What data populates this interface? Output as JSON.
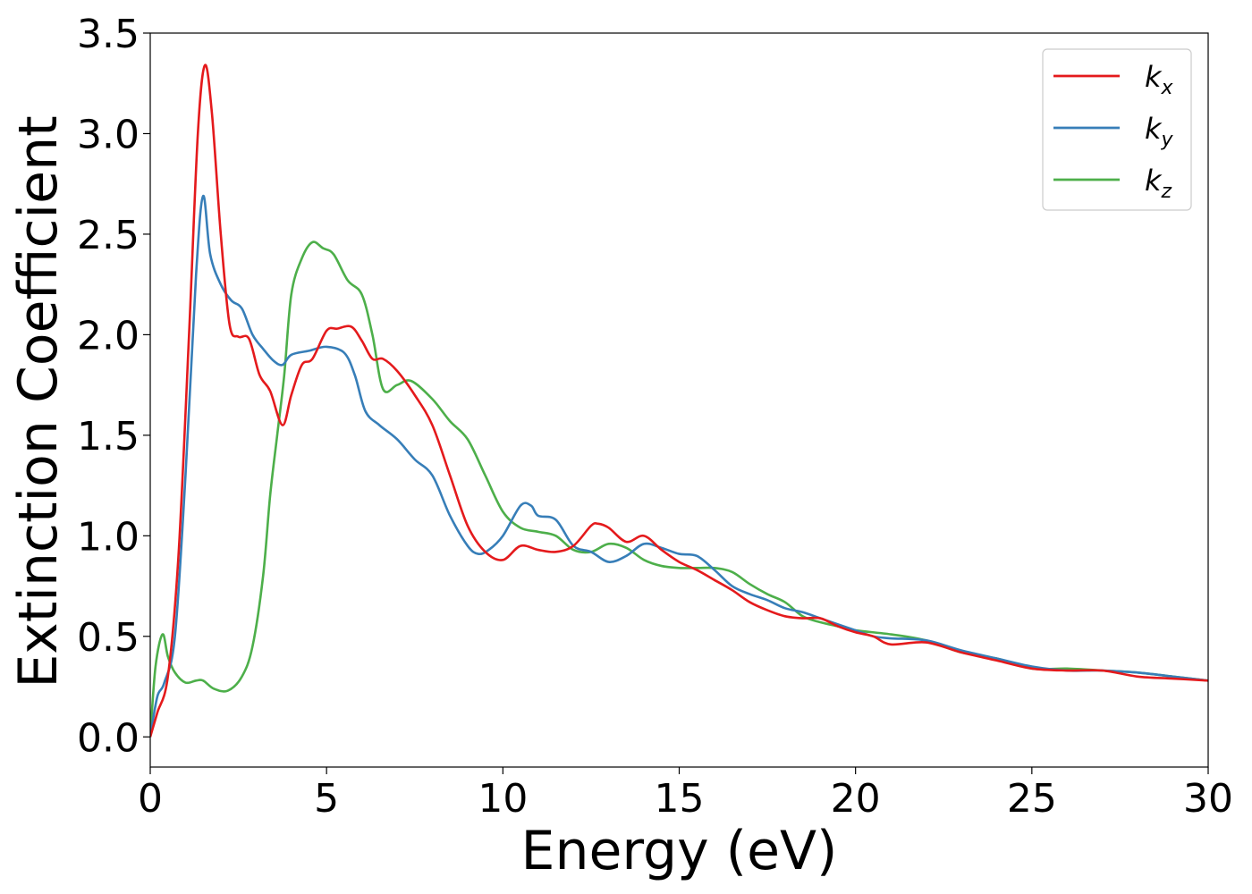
{
  "chart_data": {
    "type": "line",
    "xlabel": "Energy (eV)",
    "ylabel": "Extinction Coefficient",
    "xlim": [
      0,
      30
    ],
    "ylim": [
      -0.15,
      3.5
    ],
    "xticks": [
      "0",
      "5",
      "10",
      "15",
      "20",
      "25",
      "30"
    ],
    "yticks": [
      "0.0",
      "0.5",
      "1.0",
      "1.5",
      "2.0",
      "2.5",
      "3.0",
      "3.5"
    ],
    "grid": false,
    "legend_position": "top-right",
    "series": [
      {
        "name": "k",
        "sub": "x",
        "color": "#e41a1c",
        "x": [
          0,
          0.2,
          0.5,
          0.8,
          1.1,
          1.35,
          1.55,
          1.75,
          2.0,
          2.25,
          2.5,
          2.8,
          3.1,
          3.4,
          3.75,
          4.0,
          4.3,
          4.6,
          5.0,
          5.3,
          5.7,
          6.0,
          6.3,
          6.6,
          7.0,
          7.5,
          8.0,
          8.5,
          9.0,
          9.5,
          10.0,
          10.5,
          11.0,
          11.5,
          12.0,
          12.5,
          12.7,
          13.0,
          13.5,
          14.0,
          14.5,
          15.0,
          15.5,
          16.0,
          16.5,
          17.0,
          17.5,
          18.0,
          18.5,
          19.0,
          19.5,
          20.0,
          20.5,
          21.0,
          22.0,
          23.0,
          24.0,
          25.0,
          26.0,
          27.0,
          28.0,
          29.0,
          30.0
        ],
        "values": [
          0.0,
          0.12,
          0.3,
          0.9,
          2.0,
          3.0,
          3.34,
          3.1,
          2.5,
          2.05,
          1.99,
          1.98,
          1.8,
          1.72,
          1.55,
          1.7,
          1.85,
          1.88,
          2.02,
          2.03,
          2.04,
          1.97,
          1.88,
          1.88,
          1.82,
          1.7,
          1.55,
          1.3,
          1.05,
          0.92,
          0.88,
          0.95,
          0.93,
          0.92,
          0.95,
          1.05,
          1.06,
          1.04,
          0.97,
          1.0,
          0.93,
          0.87,
          0.83,
          0.78,
          0.73,
          0.67,
          0.63,
          0.6,
          0.59,
          0.59,
          0.55,
          0.52,
          0.5,
          0.46,
          0.47,
          0.42,
          0.38,
          0.34,
          0.33,
          0.33,
          0.3,
          0.29,
          0.28
        ]
      },
      {
        "name": "k",
        "sub": "y",
        "color": "#377eb8",
        "x": [
          0,
          0.2,
          0.4,
          0.7,
          1.0,
          1.3,
          1.5,
          1.7,
          2.0,
          2.3,
          2.6,
          2.9,
          3.2,
          3.5,
          3.75,
          4.0,
          4.5,
          5.0,
          5.5,
          5.8,
          6.1,
          6.5,
          7.0,
          7.5,
          8.0,
          8.5,
          9.0,
          9.3,
          9.6,
          10.0,
          10.5,
          10.8,
          11.0,
          11.5,
          12.0,
          12.5,
          13.0,
          13.5,
          14.0,
          14.5,
          15.0,
          15.5,
          16.0,
          16.5,
          17.0,
          17.5,
          18.0,
          18.5,
          19.0,
          19.5,
          20.0,
          20.5,
          21.0,
          22.0,
          23.0,
          24.0,
          25.0,
          26.0,
          27.0,
          28.0,
          29.0,
          30.0
        ],
        "values": [
          0.0,
          0.2,
          0.27,
          0.5,
          1.3,
          2.3,
          2.69,
          2.4,
          2.25,
          2.17,
          2.13,
          2.0,
          1.93,
          1.87,
          1.85,
          1.9,
          1.92,
          1.94,
          1.91,
          1.8,
          1.62,
          1.55,
          1.48,
          1.38,
          1.3,
          1.1,
          0.95,
          0.91,
          0.93,
          1.0,
          1.15,
          1.15,
          1.1,
          1.08,
          0.95,
          0.92,
          0.87,
          0.9,
          0.96,
          0.94,
          0.91,
          0.9,
          0.83,
          0.75,
          0.71,
          0.68,
          0.64,
          0.62,
          0.59,
          0.56,
          0.53,
          0.5,
          0.49,
          0.48,
          0.43,
          0.39,
          0.35,
          0.33,
          0.33,
          0.32,
          0.3,
          0.28
        ]
      },
      {
        "name": "k",
        "sub": "z",
        "color": "#4daf4a",
        "x": [
          0,
          0.15,
          0.35,
          0.5,
          0.7,
          1.0,
          1.3,
          1.5,
          1.8,
          2.2,
          2.6,
          2.9,
          3.2,
          3.4,
          3.6,
          3.8,
          4.0,
          4.3,
          4.6,
          4.9,
          5.2,
          5.6,
          6.0,
          6.3,
          6.6,
          7.0,
          7.4,
          8.0,
          8.5,
          9.0,
          9.5,
          10.0,
          10.5,
          11.0,
          11.5,
          12.0,
          12.5,
          13.0,
          13.5,
          14.0,
          14.5,
          15.0,
          15.5,
          16.0,
          16.5,
          17.0,
          17.5,
          18.0,
          18.5,
          19.0,
          19.5,
          20.0,
          21.0,
          22.0,
          23.0,
          24.0,
          25.0,
          26.0,
          27.0,
          28.0,
          29.0,
          30.0
        ],
        "values": [
          0.0,
          0.35,
          0.51,
          0.4,
          0.32,
          0.27,
          0.28,
          0.28,
          0.24,
          0.23,
          0.3,
          0.45,
          0.8,
          1.2,
          1.5,
          1.8,
          2.2,
          2.38,
          2.46,
          2.43,
          2.4,
          2.27,
          2.2,
          2.0,
          1.73,
          1.75,
          1.77,
          1.68,
          1.57,
          1.48,
          1.3,
          1.12,
          1.04,
          1.02,
          1.0,
          0.93,
          0.92,
          0.96,
          0.94,
          0.88,
          0.85,
          0.84,
          0.84,
          0.84,
          0.82,
          0.76,
          0.71,
          0.67,
          0.6,
          0.57,
          0.55,
          0.53,
          0.51,
          0.48,
          0.42,
          0.39,
          0.34,
          0.34,
          0.33,
          0.32,
          0.3,
          0.28
        ]
      }
    ]
  }
}
